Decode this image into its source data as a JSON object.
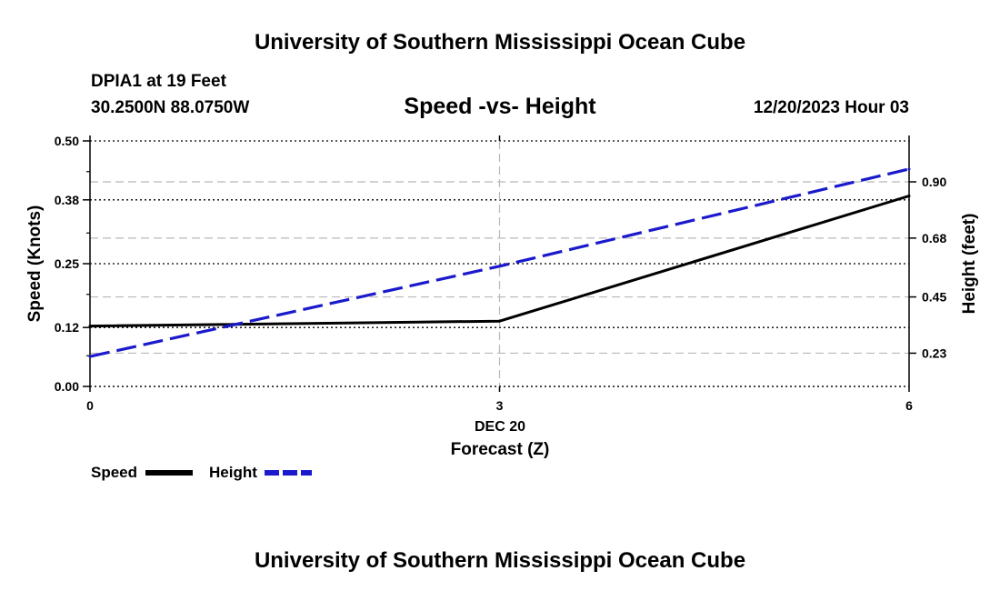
{
  "header": {
    "title": "University of Southern Mississippi Ocean Cube",
    "station": "DPIA1 at 19 Feet",
    "coordinates": "30.2500N  88.0750W",
    "datetime": "12/20/2023 Hour 03"
  },
  "footer": {
    "title": "University of Southern Mississippi Ocean Cube"
  },
  "chart_data": {
    "type": "line",
    "title": "Speed -vs- Height",
    "xlabel": "Forecast (Z)",
    "xlabel_date": "DEC 20",
    "ylabel": "Speed (Knots)",
    "ylabel_right": "Height (feet)",
    "x": [
      0,
      3,
      6
    ],
    "xlim": [
      0,
      6
    ],
    "xticks": [
      "0",
      "3",
      "6"
    ],
    "ylim": [
      0,
      0.5
    ],
    "yticks": [
      "0.00",
      "0.12",
      "0.25",
      "0.38",
      "0.50"
    ],
    "ylim_right": [
      0.1,
      1.06
    ],
    "yticks_right": [
      "0.23",
      "0.45",
      "0.68",
      "0.90"
    ],
    "grid": true,
    "series": [
      {
        "name": "Speed",
        "axis": "left",
        "style": "solid",
        "color": "#000000",
        "x": [
          0,
          3,
          6
        ],
        "values": [
          0.123,
          0.133,
          0.388
        ]
      },
      {
        "name": "Height",
        "axis": "right",
        "style": "dashed",
        "color": "#1a1acc",
        "x": [
          0,
          3,
          6
        ],
        "values": [
          0.217,
          0.57,
          0.95
        ]
      }
    ],
    "legend": {
      "placement": "bottom-left",
      "items": [
        "Speed",
        "Height"
      ]
    }
  }
}
